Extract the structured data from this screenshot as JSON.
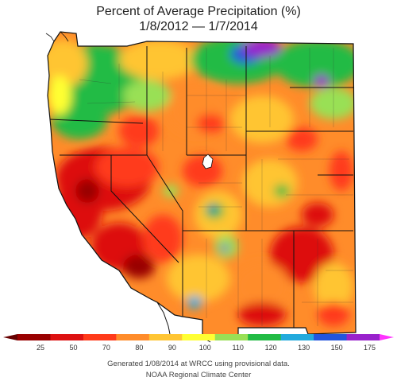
{
  "title": {
    "line1": "Percent of Average Precipitation (%)",
    "line2": "1/8/2012 — 1/7/2014"
  },
  "legend": {
    "items": [
      {
        "label": "25",
        "color": "#990000"
      },
      {
        "label": "50",
        "color": "#dd1111"
      },
      {
        "label": "70",
        "color": "#ff3a1a"
      },
      {
        "label": "80",
        "color": "#ff8c2a"
      },
      {
        "label": "90",
        "color": "#ffc533"
      },
      {
        "label": "100",
        "color": "#ffff33"
      },
      {
        "label": "110",
        "color": "#99e055"
      },
      {
        "label": "120",
        "color": "#22bb44"
      },
      {
        "label": "130",
        "color": "#22aadd"
      },
      {
        "label": "150",
        "color": "#2255dd"
      },
      {
        "label": "175",
        "color": "#9922cc"
      }
    ],
    "end_left_color": "#660000",
    "end_right_color": "#ff33ff"
  },
  "credits": {
    "line1": "Generated 1/08/2014 at WRCC using provisional data.",
    "line2": "NOAA Regional Climate Center"
  },
  "colors": {
    "ocean": "#ffffff",
    "border": "#111111",
    "county": "#333333"
  }
}
